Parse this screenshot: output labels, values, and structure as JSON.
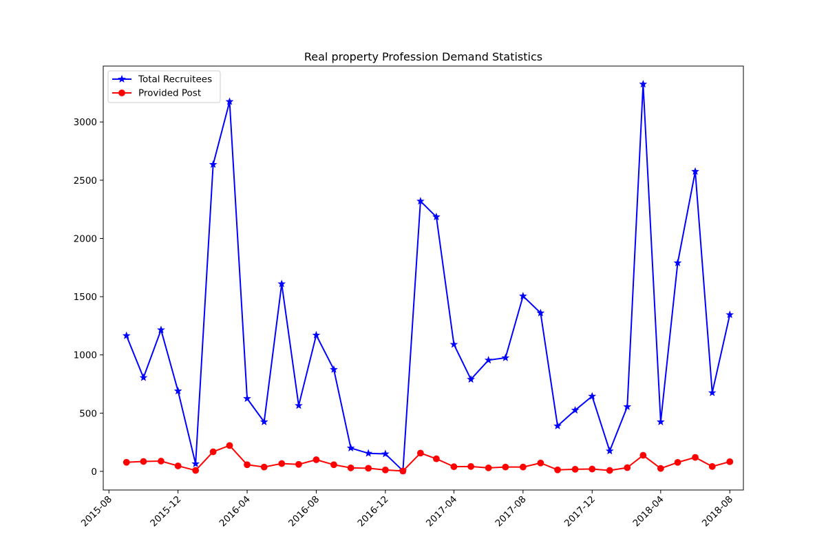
{
  "chart_data": {
    "type": "line",
    "title": "Real property Profession Demand Statistics",
    "xlabel": "",
    "ylabel": "",
    "x_axis_type": "date",
    "xlim": [
      "2015-07-22",
      "2018-08-25"
    ],
    "ylim": [
      -160,
      3480
    ],
    "x_ticks": [
      "2015-08",
      "2015-12",
      "2016-04",
      "2016-08",
      "2016-12",
      "2017-04",
      "2017-08",
      "2017-12",
      "2018-04",
      "2018-08"
    ],
    "y_ticks": [
      0,
      500,
      1000,
      1500,
      2000,
      2500,
      3000
    ],
    "grid": false,
    "legend_position": "top-left",
    "x": [
      "2015-09",
      "2015-10",
      "2015-11",
      "2015-12",
      "2016-01",
      "2016-02",
      "2016-03",
      "2016-04",
      "2016-05",
      "2016-06",
      "2016-07",
      "2016-08",
      "2016-09",
      "2016-10",
      "2016-11",
      "2016-12",
      "2017-01",
      "2017-02",
      "2017-03",
      "2017-04",
      "2017-05",
      "2017-06",
      "2017-07",
      "2017-08",
      "2017-09",
      "2017-10",
      "2017-11",
      "2017-12",
      "2018-01",
      "2018-02",
      "2018-03",
      "2018-04",
      "2018-05",
      "2018-06",
      "2018-07",
      "2018-08"
    ],
    "series": [
      {
        "name": "Total Recruitees",
        "color": "#0000ff",
        "marker": "star",
        "values": [
          1165,
          805,
          1215,
          690,
          65,
          2635,
          3175,
          625,
          425,
          1610,
          565,
          1170,
          875,
          200,
          155,
          150,
          5,
          2320,
          2185,
          1090,
          790,
          955,
          975,
          1505,
          1360,
          390,
          525,
          645,
          175,
          555,
          3325,
          425,
          1790,
          2575,
          675,
          1345
        ]
      },
      {
        "name": "Provided Post",
        "color": "#ff0000",
        "marker": "circle",
        "values": [
          78,
          85,
          88,
          47,
          8,
          168,
          222,
          57,
          37,
          67,
          60,
          100,
          57,
          30,
          27,
          12,
          3,
          157,
          108,
          40,
          42,
          30,
          37,
          37,
          72,
          13,
          18,
          20,
          8,
          32,
          138,
          25,
          77,
          120,
          42,
          83
        ]
      }
    ]
  }
}
